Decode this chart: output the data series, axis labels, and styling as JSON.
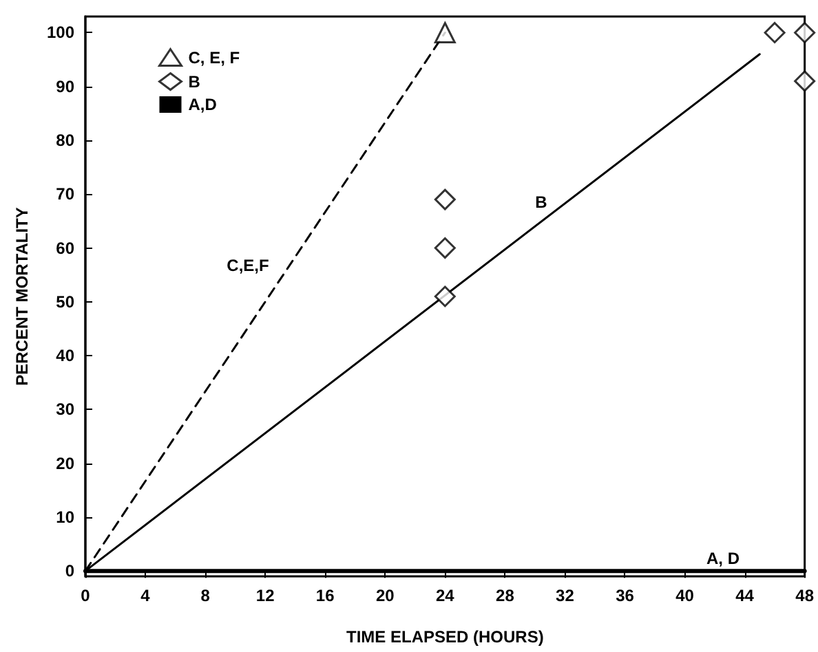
{
  "chart_data": {
    "type": "scatter",
    "xlabel": "TIME ELAPSED (HOURS)",
    "ylabel": "PERCENT MORTALITY",
    "xlim": [
      0,
      48
    ],
    "xticks": [
      0,
      4,
      8,
      12,
      16,
      20,
      24,
      28,
      32,
      36,
      40,
      44,
      48
    ],
    "ylim": [
      -1,
      103
    ],
    "yticks": [
      0,
      10,
      20,
      30,
      40,
      50,
      60,
      70,
      80,
      90,
      100
    ],
    "grid": false,
    "legend": "top left",
    "series": [
      {
        "name": "C, E, F",
        "marker": "triangle",
        "color": "#000000",
        "x": [
          24
        ],
        "values": [
          100
        ]
      },
      {
        "name": "B",
        "marker": "diamond",
        "color": "#000000",
        "x": [
          24,
          24,
          24,
          46,
          48,
          48
        ],
        "values": [
          69,
          60,
          51,
          100,
          100,
          91
        ]
      },
      {
        "name": "A,D",
        "type": "line",
        "marker": "none",
        "line_style": "solid",
        "color": "#000000",
        "x": [
          0,
          48
        ],
        "values": [
          0,
          0
        ]
      },
      {
        "type": "line",
        "marker": "none",
        "line_style": "dashed",
        "color": "#000000",
        "x": [
          0,
          24
        ],
        "values": [
          0,
          100
        ]
      },
      {
        "type": "line",
        "marker": "none",
        "line_style": "solid",
        "color": "#000000",
        "x": [
          0,
          45
        ],
        "values": [
          0,
          96
        ]
      }
    ],
    "annotations": [
      "C,E,F",
      "B",
      "A, D"
    ]
  }
}
